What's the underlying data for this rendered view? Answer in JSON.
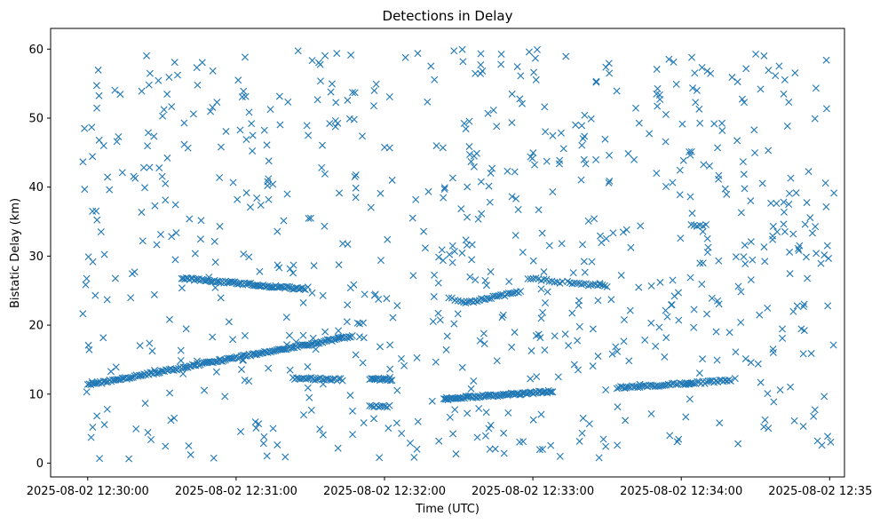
{
  "chart_data": {
    "type": "scatter",
    "title": "Detections in Delay",
    "xlabel": "Time (UTC)",
    "ylabel": "Bistatic Delay (km)",
    "x_unit": "seconds after 2025-08-02 12:30:00",
    "xlim": [
      -15,
      306
    ],
    "ylim": [
      -2,
      63
    ],
    "x_ticks": [
      {
        "value": 0,
        "label": "2025-08-02 12:30:00"
      },
      {
        "value": 60,
        "label": "2025-08-02 12:31:00"
      },
      {
        "value": 120,
        "label": "2025-08-02 12:32:00"
      },
      {
        "value": 180,
        "label": "2025-08-02 12:33:00"
      },
      {
        "value": 240,
        "label": "2025-08-02 12:34:00"
      },
      {
        "value": 300,
        "label": "2025-08-02 12:35:00"
      }
    ],
    "y_ticks": [
      0,
      10,
      20,
      30,
      40,
      50,
      60
    ],
    "marker": "x",
    "color": "#1f77b4",
    "grid": false,
    "series": [
      {
        "name": "",
        "tracks": [
          {
            "t": [
              0,
              107
            ],
            "delay": [
              11.3,
              18.4
            ],
            "n": 170
          },
          {
            "t": [
              38,
              88
            ],
            "delay": [
              26.8,
              25.2
            ],
            "n": 80
          },
          {
            "t": [
              83,
              103
            ],
            "delay": [
              12.3,
              12.1
            ],
            "n": 28
          },
          {
            "t": [
              114,
              123
            ],
            "delay": [
              12.2,
              12.1
            ],
            "n": 16
          },
          {
            "t": [
              114,
              122
            ],
            "delay": [
              8.3,
              8.2
            ],
            "n": 10
          },
          {
            "t": [
              144,
              188
            ],
            "delay": [
              9.3,
              10.4
            ],
            "n": 80
          },
          {
            "t": [
              152,
              175
            ],
            "delay": [
              23.2,
              24.8
            ],
            "n": 30
          },
          {
            "t": [
              178,
              192
            ],
            "delay": [
              26.8,
              26.2
            ],
            "n": 14
          },
          {
            "t": [
              194,
              210
            ],
            "delay": [
              26.2,
              25.6
            ],
            "n": 18
          },
          {
            "t": [
              214,
              244
            ],
            "delay": [
              10.9,
              11.6
            ],
            "n": 40
          },
          {
            "t": [
              242,
              260
            ],
            "delay": [
              11.5,
              12.0
            ],
            "n": 25
          },
          {
            "t": [
              244,
              250
            ],
            "delay": [
              34.5,
              34.5
            ],
            "n": 6
          },
          {
            "t": [
              146,
              151
            ],
            "delay": [
              23.8,
              23.6
            ],
            "n": 5
          }
        ],
        "clutter": {
          "t_range": [
            -2,
            302
          ],
          "delay_range": [
            0.5,
            60
          ],
          "n": 760
        }
      }
    ]
  }
}
